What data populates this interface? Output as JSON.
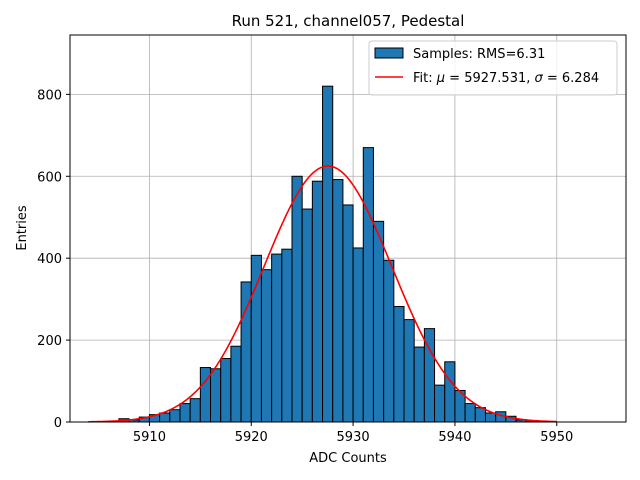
{
  "chart_data": {
    "type": "bar",
    "title": "Run 521, channel057, Pedestal",
    "xlabel": "ADC Counts",
    "ylabel": "Entries",
    "xlim": [
      5902.2,
      5956.8
    ],
    "ylim": [
      0,
      945
    ],
    "grid": true,
    "legend_position": "top-right",
    "x_ticks": [
      5910,
      5920,
      5930,
      5940,
      5950
    ],
    "y_ticks": [
      0,
      200,
      400,
      600,
      800
    ],
    "bar_color": "#1f77b4",
    "edge_color": "#000000",
    "fit_color": "#ff0000",
    "histogram": {
      "name": "Samples: RMS=6.31",
      "bin_width": 1.0,
      "bin_starts": [
        5904,
        5905,
        5906,
        5907,
        5908,
        5909,
        5910,
        5911,
        5912,
        5913,
        5914,
        5915,
        5916,
        5917,
        5918,
        5919,
        5920,
        5921,
        5922,
        5923,
        5924,
        5925,
        5926,
        5927,
        5928,
        5929,
        5930,
        5931,
        5932,
        5933,
        5934,
        5935,
        5936,
        5937,
        5938,
        5939,
        5940,
        5941,
        5942,
        5943,
        5944,
        5945,
        5946,
        5947,
        5948,
        5949
      ],
      "counts": [
        0,
        0,
        0,
        8,
        5,
        12,
        18,
        22,
        30,
        45,
        57,
        133,
        130,
        155,
        185,
        342,
        407,
        372,
        410,
        422,
        600,
        520,
        588,
        820,
        592,
        530,
        425,
        670,
        490,
        395,
        282,
        250,
        183,
        228,
        90,
        147,
        77,
        45,
        35,
        22,
        25,
        14,
        5,
        2,
        0,
        0
      ]
    },
    "fit": {
      "name": "Fit: μ = 5927.531, σ = 6.284",
      "mu": 5927.531,
      "sigma": 6.284,
      "amplitude": 625,
      "x_range": [
        5904,
        5950
      ]
    }
  },
  "legend": {
    "samples_label": "Samples: RMS=6.31",
    "fit_prefix": "Fit: ",
    "mu_symbol": "μ",
    "mu_text": " = 5927.531, ",
    "sigma_symbol": "σ",
    "sigma_text": " = 6.284"
  }
}
